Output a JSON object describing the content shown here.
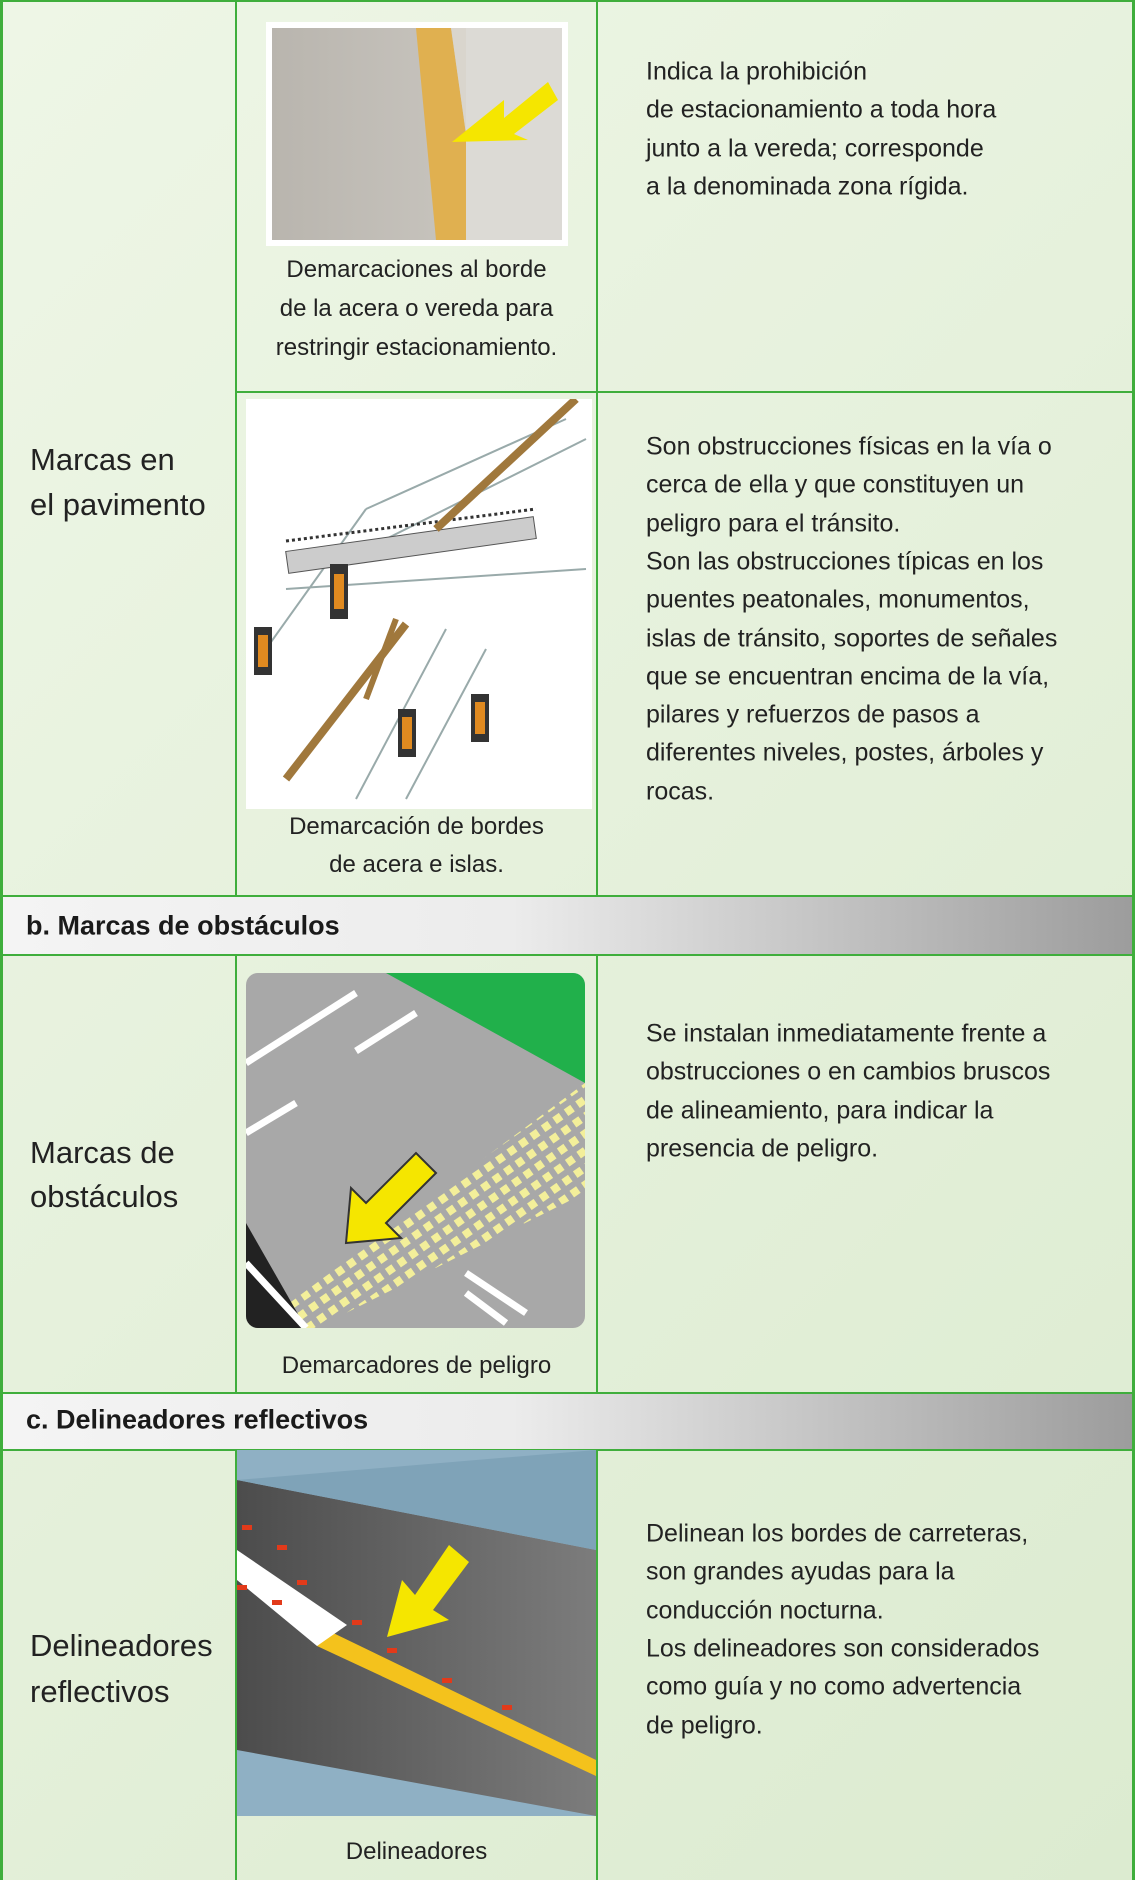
{
  "groups": [
    {
      "label": [
        "Marcas en",
        "el pavimento"
      ],
      "items": [
        {
          "caption": [
            "Demarcaciones al borde",
            "de la acera o vereda para",
            "restringir estacionamiento."
          ],
          "description": [
            "Indica la prohibición",
            "de estacionamiento a toda hora",
            "junto a la vereda; corresponde",
            "a la denominada zona rígida."
          ]
        },
        {
          "caption": [
            "Demarcación de bordes",
            "de acera e islas."
          ],
          "description": [
            "Son obstrucciones físicas en la vía o",
            "cerca de ella y que constituyen un",
            "peligro para el tránsito.",
            "Son las obstrucciones típicas en los",
            "puentes peatonales, monumentos,",
            "islas de tránsito, soportes de señales",
            "que se encuentran encima de la vía,",
            "pilares y refuerzos de pasos a",
            "diferentes niveles, postes, árboles y",
            "rocas."
          ]
        }
      ]
    },
    {
      "heading": "b. Marcas de obstáculos",
      "label": [
        "Marcas de",
        "obstáculos"
      ],
      "items": [
        {
          "caption": [
            "Demarcadores de peligro"
          ],
          "description": [
            "Se instalan inmediatamente frente a",
            "obstrucciones o en cambios bruscos",
            "de alineamiento, para indicar la",
            "presencia de peligro."
          ]
        }
      ]
    },
    {
      "heading": "c. Delineadores reflectivos",
      "label": [
        "Delineadores",
        "reflectivos"
      ],
      "items": [
        {
          "caption": [
            "Delineadores"
          ],
          "description": [
            "Delinean los bordes de carreteras,",
            "son grandes ayudas para la",
            "conducción nocturna.",
            "Los delineadores son considerados",
            "como guía y no como advertencia",
            "de peligro."
          ]
        }
      ]
    }
  ]
}
